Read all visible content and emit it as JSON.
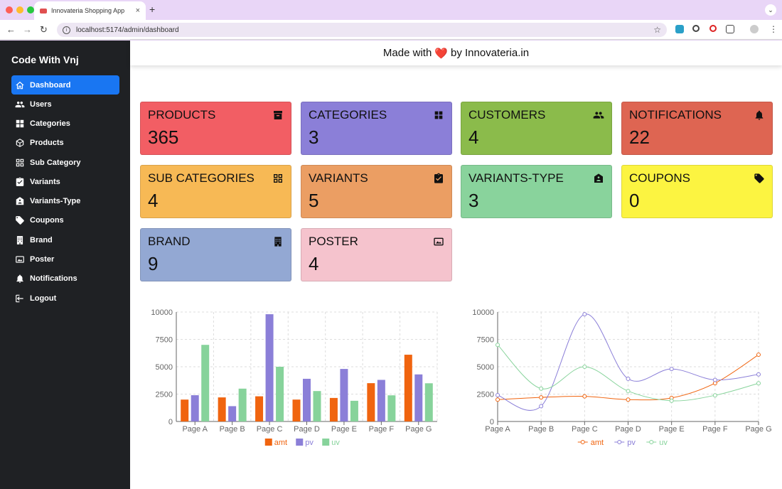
{
  "browser": {
    "tab_title": "Innovateria Shopping App",
    "url": "localhost:5174/admin/dashboard"
  },
  "sidebar": {
    "brand": "Code With Vnj",
    "items": [
      {
        "label": "Dashboard",
        "icon": "home-icon",
        "active": true
      },
      {
        "label": "Users",
        "icon": "users-icon"
      },
      {
        "label": "Categories",
        "icon": "grid-icon"
      },
      {
        "label": "Products",
        "icon": "cube-icon"
      },
      {
        "label": "Sub Category",
        "icon": "grid-outline-icon"
      },
      {
        "label": "Variants",
        "icon": "clipboard-check-icon"
      },
      {
        "label": "Variants-Type",
        "icon": "house-badge-icon"
      },
      {
        "label": "Coupons",
        "icon": "tag-icon"
      },
      {
        "label": "Brand",
        "icon": "building-icon"
      },
      {
        "label": "Poster",
        "icon": "image-icon"
      },
      {
        "label": "Notifications",
        "icon": "bell-icon"
      },
      {
        "label": "Logout",
        "icon": "logout-icon"
      }
    ]
  },
  "header": {
    "prefix": "Made with",
    "heart": "❤️",
    "suffix": "by Innovateria.in"
  },
  "cards": [
    {
      "label": "PRODUCTS",
      "value": "365",
      "color": "#f25e64",
      "icon": "archive-icon"
    },
    {
      "label": "CATEGORIES",
      "value": "3",
      "color": "#8b7fd8",
      "icon": "grid-icon"
    },
    {
      "label": "CUSTOMERS",
      "value": "4",
      "color": "#8bbb4b",
      "icon": "users-icon"
    },
    {
      "label": "NOTIFICATIONS",
      "value": "22",
      "color": "#de6552",
      "icon": "bell-icon"
    },
    {
      "label": "SUB CATEGORIES",
      "value": "4",
      "color": "#f7b955",
      "icon": "grid-outline-icon"
    },
    {
      "label": "VARIANTS",
      "value": "5",
      "color": "#eb9e63",
      "icon": "clipboard-check-icon"
    },
    {
      "label": "VARIANTS-TYPE",
      "value": "3",
      "color": "#89d39c",
      "icon": "house-badge-icon"
    },
    {
      "label": "COUPONS",
      "value": "0",
      "color": "#fcf441",
      "icon": "tag-icon"
    },
    {
      "label": "BRAND",
      "value": "9",
      "color": "#93a8d3",
      "icon": "building-icon"
    },
    {
      "label": "POSTER",
      "value": "4",
      "color": "#f5c3cd",
      "icon": "image-icon"
    }
  ],
  "chart_data": [
    {
      "type": "bar",
      "categories": [
        "Page A",
        "Page B",
        "Page C",
        "Page D",
        "Page E",
        "Page F",
        "Page G"
      ],
      "series": [
        {
          "name": "amt",
          "color": "#f0640f",
          "values": [
            2000,
            2200,
            2300,
            2000,
            2150,
            3500,
            6100
          ]
        },
        {
          "name": "pv",
          "color": "#8b7fd8",
          "values": [
            2400,
            1400,
            9800,
            3900,
            4800,
            3800,
            4300
          ]
        },
        {
          "name": "uv",
          "color": "#87d39b",
          "values": [
            7000,
            3000,
            5000,
            2780,
            1890,
            2390,
            3490
          ]
        }
      ],
      "yticks": [
        "0",
        "2500",
        "5000",
        "7500",
        "10000"
      ],
      "ylim": [
        0,
        10000
      ],
      "grid": true,
      "legend": "bottom"
    },
    {
      "type": "line",
      "categories": [
        "Page A",
        "Page B",
        "Page C",
        "Page D",
        "Page E",
        "Page F",
        "Page G"
      ],
      "series": [
        {
          "name": "amt",
          "color": "#f0640f",
          "values": [
            2000,
            2200,
            2300,
            2000,
            2150,
            3500,
            6100
          ]
        },
        {
          "name": "pv",
          "color": "#8b7fd8",
          "values": [
            2400,
            1400,
            9800,
            3900,
            4800,
            3800,
            4300
          ]
        },
        {
          "name": "uv",
          "color": "#87d39b",
          "values": [
            7000,
            3000,
            5000,
            2780,
            1890,
            2390,
            3490
          ]
        }
      ],
      "yticks": [
        "0",
        "2500",
        "5000",
        "7500",
        "10000"
      ],
      "ylim": [
        0,
        10000
      ],
      "grid": true,
      "legend": "bottom"
    }
  ]
}
